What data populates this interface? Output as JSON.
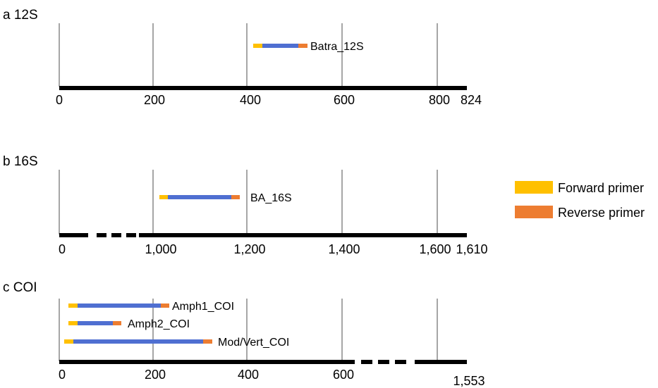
{
  "chart_data": [
    {
      "type": "diagram",
      "panel_label": "a 12S",
      "axis_end_label": "824",
      "ticks": [
        {
          "label": "0",
          "value": 0
        },
        {
          "label": "200",
          "value": 200
        },
        {
          "label": "400",
          "value": 400
        },
        {
          "label": "600",
          "value": 600
        },
        {
          "label": "800",
          "value": 800
        }
      ],
      "amplicons": [
        {
          "name": "Batra_12S",
          "fwd_start": 410,
          "fwd_end": 428,
          "rev_start": 504,
          "rev_end": 522
        }
      ]
    },
    {
      "type": "diagram",
      "panel_label": "b 16S",
      "axis_end_label": "1,610",
      "ticks": [
        {
          "label": "0",
          "value": 0
        },
        {
          "label": "1,000",
          "value": 1000
        },
        {
          "label": "1,200",
          "value": 1200
        },
        {
          "label": "1,400",
          "value": 1400
        },
        {
          "label": "1,600",
          "value": 1600
        }
      ],
      "amplicons": [
        {
          "name": "BA_16S",
          "fwd_start": 1014,
          "fwd_end": 1032,
          "rev_start": 1163,
          "rev_end": 1181
        }
      ]
    },
    {
      "type": "diagram",
      "panel_label": "c COI",
      "axis_end_label": "1,553",
      "ticks": [
        {
          "label": "0",
          "value": 0
        },
        {
          "label": "200",
          "value": 200
        },
        {
          "label": "400",
          "value": 400
        },
        {
          "label": "600",
          "value": 600
        }
      ],
      "amplicons": [
        {
          "name": "Amph1_COI",
          "fwd_start": 15,
          "fwd_end": 35,
          "rev_start": 212,
          "rev_end": 230
        },
        {
          "name": "Amph2_COI",
          "fwd_start": 15,
          "fwd_end": 35,
          "rev_start": 110,
          "rev_end": 128
        },
        {
          "name": "Mod/Vert_COI",
          "fwd_start": 5,
          "fwd_end": 25,
          "rev_start": 300,
          "rev_end": 320
        }
      ]
    }
  ],
  "legend": [
    {
      "label": "Forward primer",
      "color": "#FFC000"
    },
    {
      "label": "Reverse primer",
      "color": "#ED7D31"
    }
  ],
  "colors": {
    "forward_primer": "#FFC000",
    "reverse_primer": "#ED7D31",
    "amplicon": "#4F6FD1",
    "axis": "#000000",
    "gridline": "#A6A6A6"
  }
}
